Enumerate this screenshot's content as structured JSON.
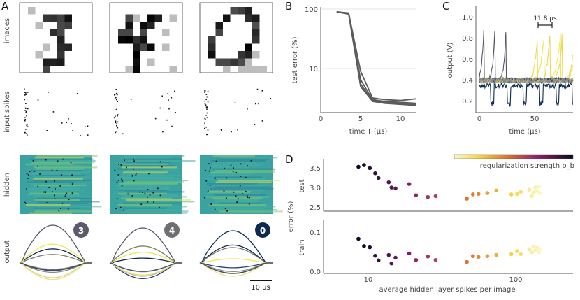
{
  "panels": {
    "A": "A",
    "B": "B",
    "C": "C",
    "D": "D"
  },
  "panel_a": {
    "row_labels": [
      "images",
      "input spikes",
      "hidden",
      "output"
    ],
    "digits": [
      "3",
      "4",
      "0"
    ],
    "scale_bar_label": "10 µs"
  },
  "colors": {
    "dark_navy": "#0c2a50",
    "gray_badge": "#5b5b69",
    "yellow": "#f3e64e",
    "teal": "#3aa2a0",
    "slate": "#555566"
  },
  "chart_data": [
    {
      "type": "line",
      "panel": "B",
      "xlabel": "time T (µs)",
      "ylabel": "test error (%)",
      "xlim": [
        0,
        12
      ],
      "ylim": [
        2.2,
        100
      ],
      "yscale": "log",
      "xticks": [
        "0",
        "5",
        "10"
      ],
      "yticks": [
        "10",
        "100"
      ],
      "grid": "horizontal",
      "x": [
        2,
        3.5,
        5,
        6.5,
        8,
        10,
        12
      ],
      "series": [
        {
          "values": [
            90,
            86,
            9,
            3.2,
            3.0,
            2.9,
            3.1
          ]
        },
        {
          "values": [
            90,
            84,
            6.5,
            3.0,
            2.8,
            2.7,
            2.6
          ]
        },
        {
          "values": [
            90,
            83,
            5.5,
            2.9,
            2.7,
            2.6,
            2.5
          ]
        },
        {
          "values": [
            90,
            82,
            5.0,
            2.8,
            2.6,
            2.5,
            2.4
          ]
        }
      ]
    },
    {
      "type": "line",
      "panel": "C",
      "xlabel": "time (µs)",
      "ylabel": "output (V)",
      "xlim": [
        0,
        85
      ],
      "ylim": [
        0.1,
        1.1
      ],
      "xticks": [
        "0",
        "50"
      ],
      "yticks": [
        "0.2",
        "0.4",
        "0.6",
        "0.8",
        "1.0"
      ],
      "annotation": "11.8 µs"
    },
    {
      "type": "scatter",
      "panel": "D",
      "xlabel": "average hidden layer spikes per image",
      "ylabel": "error (%)",
      "xscale": "log",
      "xlim": [
        6,
        200
      ],
      "xticks": [
        "10",
        "100"
      ],
      "colorbar_label": "regularization strength ρ_b",
      "subplots": [
        {
          "name": "test",
          "ylim": [
            2.45,
            3.65
          ],
          "yticks": [
            "2.5",
            "3.0",
            "3.5"
          ],
          "points": [
            [
              9.8,
              3.48
            ],
            [
              10.6,
              3.52
            ],
            [
              11.5,
              3.45
            ],
            [
              12.4,
              3.33
            ],
            [
              13.0,
              3.22
            ],
            [
              15.0,
              3.12
            ],
            [
              15.6,
              3.0
            ],
            [
              16.5,
              2.98
            ],
            [
              20,
              3.08
            ],
            [
              22,
              2.82
            ],
            [
              26,
              2.78
            ],
            [
              29,
              2.8
            ],
            [
              45,
              2.74
            ],
            [
              49,
              2.84
            ],
            [
              53,
              2.85
            ],
            [
              60,
              2.87
            ],
            [
              68,
              2.93
            ],
            [
              84,
              2.84
            ],
            [
              91,
              2.85
            ],
            [
              96,
              2.9
            ],
            [
              108,
              2.95
            ],
            [
              112,
              2.8
            ],
            [
              115,
              2.88
            ],
            [
              118,
              3.0
            ],
            [
              121,
              2.92
            ],
            [
              124,
              3.02
            ],
            [
              125,
              2.87
            ]
          ]
        },
        {
          "name": "train",
          "ylim": [
            -0.005,
            0.135
          ],
          "yticks": [
            "0.0",
            "0.1"
          ],
          "points": [
            [
              9.8,
              0.085
            ],
            [
              10.6,
              0.066
            ],
            [
              11.5,
              0.063
            ],
            [
              12.4,
              0.041
            ],
            [
              13.0,
              0.029
            ],
            [
              15.0,
              0.043
            ],
            [
              15.6,
              0.021
            ],
            [
              16.5,
              0.036
            ],
            [
              20,
              0.047
            ],
            [
              22,
              0.03
            ],
            [
              26,
              0.039
            ],
            [
              29,
              0.03
            ],
            [
              45,
              0.025
            ],
            [
              49,
              0.04
            ],
            [
              53,
              0.038
            ],
            [
              60,
              0.04
            ],
            [
              68,
              0.043
            ],
            [
              84,
              0.045
            ],
            [
              91,
              0.053
            ],
            [
              96,
              0.045
            ],
            [
              108,
              0.058
            ],
            [
              112,
              0.05
            ],
            [
              115,
              0.065
            ],
            [
              118,
              0.055
            ],
            [
              121,
              0.062
            ],
            [
              124,
              0.05
            ],
            [
              125,
              0.058
            ]
          ]
        }
      ]
    }
  ]
}
